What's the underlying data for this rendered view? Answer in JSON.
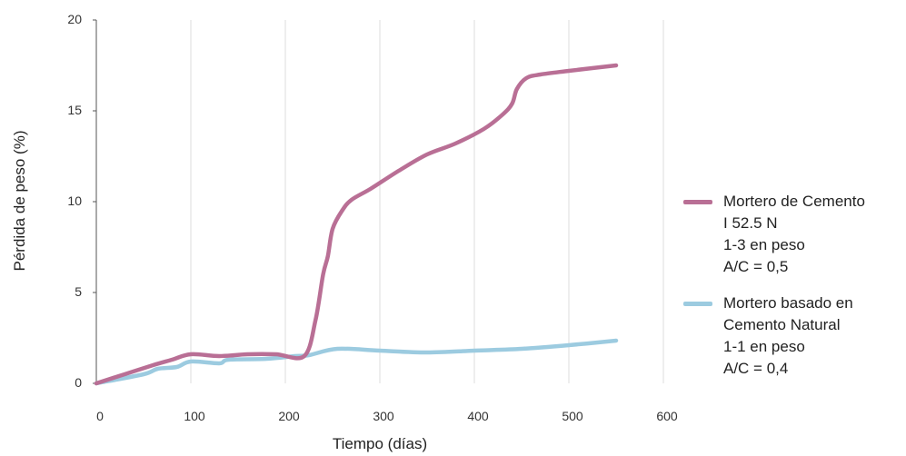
{
  "chart_data": {
    "type": "line",
    "title": "",
    "xlabel": "Tiempo (días)",
    "ylabel": "Pérdida de peso (%)",
    "xlim": [
      0,
      600
    ],
    "ylim": [
      0,
      20
    ],
    "xticks": [
      "0",
      "100",
      "200",
      "300",
      "400",
      "500",
      "600"
    ],
    "yticks": [
      "0",
      "5",
      "10",
      "15",
      "20"
    ],
    "grid": "vertical",
    "legend_position": "right",
    "series": [
      {
        "name": [
          "Mortero de Cemento",
          "I 52.5 N",
          "1-3 en peso",
          "A/C = 0,5"
        ],
        "color": "#b96f95",
        "points": [
          [
            0,
            0
          ],
          [
            30,
            0.5
          ],
          [
            60,
            1.0
          ],
          [
            80,
            1.3
          ],
          [
            100,
            1.6
          ],
          [
            130,
            1.5
          ],
          [
            160,
            1.6
          ],
          [
            190,
            1.6
          ],
          [
            220,
            1.5
          ],
          [
            232,
            3.5
          ],
          [
            240,
            6.0
          ],
          [
            245,
            7.0
          ],
          [
            250,
            8.5
          ],
          [
            260,
            9.5
          ],
          [
            270,
            10.1
          ],
          [
            290,
            10.7
          ],
          [
            320,
            11.7
          ],
          [
            350,
            12.6
          ],
          [
            380,
            13.2
          ],
          [
            410,
            14.0
          ],
          [
            430,
            14.8
          ],
          [
            440,
            15.4
          ],
          [
            445,
            16.2
          ],
          [
            455,
            16.8
          ],
          [
            470,
            17.0
          ],
          [
            500,
            17.2
          ],
          [
            550,
            17.5
          ]
        ]
      },
      {
        "name": [
          "Mortero basado en",
          "Cemento Natural",
          "1-1 en peso",
          "A/C = 0,4"
        ],
        "color": "#9ccbe0",
        "points": [
          [
            0,
            0
          ],
          [
            50,
            0.5
          ],
          [
            65,
            0.8
          ],
          [
            85,
            0.9
          ],
          [
            100,
            1.2
          ],
          [
            130,
            1.1
          ],
          [
            140,
            1.3
          ],
          [
            180,
            1.35
          ],
          [
            210,
            1.5
          ],
          [
            225,
            1.55
          ],
          [
            255,
            1.9
          ],
          [
            300,
            1.8
          ],
          [
            350,
            1.7
          ],
          [
            400,
            1.8
          ],
          [
            450,
            1.9
          ],
          [
            500,
            2.1
          ],
          [
            550,
            2.35
          ]
        ]
      }
    ]
  }
}
